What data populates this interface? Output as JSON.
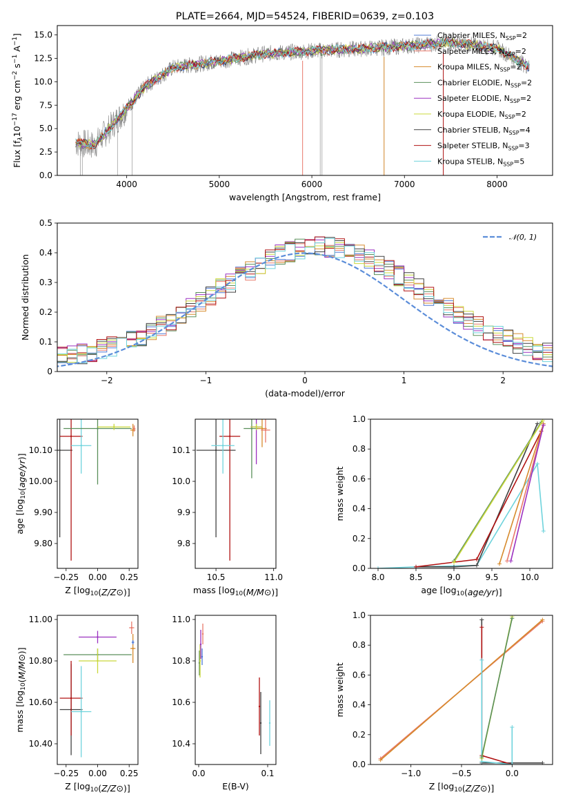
{
  "title": "PLATE=2664, MJD=54524, FIBERID=0639, z=0.103",
  "legend": [
    {
      "label": "Chabrier MILES, N",
      "sub": "SSP",
      "val": "=2",
      "color": "#4e79d6"
    },
    {
      "label": "Salpeter MILES, N",
      "sub": "SSP",
      "val": "=2",
      "color": "#e8796a"
    },
    {
      "label": "Kroupa MILES, N",
      "sub": "SSP",
      "val": "=2",
      "color": "#d68a2c"
    },
    {
      "label": "Chabrier ELODIE, N",
      "sub": "SSP",
      "val": "=2",
      "color": "#5a8f5a"
    },
    {
      "label": "Salpeter ELODIE, N",
      "sub": "SSP",
      "val": "=2",
      "color": "#9b30c0"
    },
    {
      "label": "Kroupa ELODIE, N",
      "sub": "SSP",
      "val": "=2",
      "color": "#c9d83a"
    },
    {
      "label": "Chabrier STELIB, N",
      "sub": "SSP",
      "val": "=4",
      "color": "#404040"
    },
    {
      "label": "Salpeter STELIB, N",
      "sub": "SSP",
      "val": "=3",
      "color": "#b01010"
    },
    {
      "label": "Kroupa STELIB, N",
      "sub": "SSP",
      "val": "=5",
      "color": "#6ed3dc"
    }
  ],
  "chart_data": [
    {
      "type": "line",
      "id": "spectrum",
      "xlabel": "wavelength [Angstrom, rest frame]",
      "ylabel_parts": [
        "Flux [f",
        "λ",
        "10",
        "−17",
        " erg cm",
        "−2",
        " s",
        "−1",
        " A",
        "−1",
        "]"
      ],
      "xlim": [
        3250,
        8600
      ],
      "ylim": [
        0,
        16
      ],
      "xticks": [
        4000,
        5000,
        6000,
        7000,
        8000
      ],
      "yticks": [
        0.0,
        2.5,
        5.0,
        7.5,
        10.0,
        12.5,
        15.0
      ],
      "data_envelope": {
        "x": [
          3450,
          3650,
          3900,
          4200,
          4500,
          5000,
          5500,
          6000,
          6500,
          7000,
          7500,
          8000,
          8350
        ],
        "y": [
          3.5,
          3.2,
          6.0,
          9.5,
          11.5,
          12.2,
          13.0,
          13.3,
          13.5,
          13.8,
          14.2,
          13.6,
          11.5
        ]
      }
    },
    {
      "type": "line",
      "id": "residuals",
      "xlabel": "(data-model)/error",
      "ylabel": "Normed distribution",
      "xlim": [
        -2.5,
        2.5
      ],
      "ylim": [
        0,
        0.5
      ],
      "xticks": [
        -2,
        -1,
        0,
        1,
        2
      ],
      "yticks": [
        0.0,
        0.1,
        0.2,
        0.3,
        0.4,
        0.5
      ],
      "gaussian_label": "𝒩(0, 1)",
      "gaussian_color": "#5b8dd9"
    },
    {
      "type": "scatter",
      "id": "age_vs_Z",
      "xlabel": "Z [log10(Z/Z⊙)]",
      "ylabel": "age  [log10(age/yr)]",
      "xlim": [
        -0.32,
        0.32
      ],
      "ylim": [
        9.72,
        10.2
      ],
      "xticks": [
        -0.25,
        0.0,
        0.25
      ],
      "yticks": [
        9.8,
        9.9,
        10.0,
        10.1
      ],
      "points": [
        {
          "x": -0.3,
          "y": 10.1,
          "xerr": 0.1,
          "yerr": 0.28,
          "color": "#404040"
        },
        {
          "x": -0.21,
          "y": 10.145,
          "xerr": 0.09,
          "yerr": 0.4,
          "color": "#b01010"
        },
        {
          "x": -0.13,
          "y": 10.115,
          "xerr": 0.08,
          "yerr": 0.09,
          "color": "#6ed3dc"
        },
        {
          "x": 0.0,
          "y": 10.17,
          "xerr": 0.27,
          "yerr": 0.18,
          "color": "#5a8f5a"
        },
        {
          "x": 0.13,
          "y": 10.175,
          "xerr": 0.13,
          "yerr": 0.01,
          "color": "#c9d83a"
        },
        {
          "x": 0.28,
          "y": 10.165,
          "xerr": 0.02,
          "yerr": 0.02,
          "color": "#d68a2c"
        },
        {
          "x": 0.29,
          "y": 10.17,
          "xerr": 0.01,
          "yerr": 0.01,
          "color": "#e8796a"
        }
      ]
    },
    {
      "type": "scatter",
      "id": "age_vs_mass",
      "xlabel": "mass [log10(M/M⊙)]",
      "ylabel": "",
      "xlim": [
        10.32,
        11.02
      ],
      "ylim": [
        9.72,
        10.2
      ],
      "xticks": [
        10.5,
        11.0
      ],
      "yticks": [
        9.8,
        9.9,
        10.0,
        10.1
      ],
      "points": [
        {
          "x": 10.5,
          "y": 10.1,
          "xerr": 0.17,
          "yerr": 0.28,
          "color": "#404040"
        },
        {
          "x": 10.62,
          "y": 10.145,
          "xerr": 0.09,
          "yerr": 0.4,
          "color": "#b01010"
        },
        {
          "x": 10.56,
          "y": 10.115,
          "xerr": 0.1,
          "yerr": 0.09,
          "color": "#6ed3dc"
        },
        {
          "x": 10.81,
          "y": 10.17,
          "xerr": 0.07,
          "yerr": 0.16,
          "color": "#5a8f5a"
        },
        {
          "x": 10.85,
          "y": 10.175,
          "xerr": 0.05,
          "yerr": 0.12,
          "color": "#9b30c0"
        },
        {
          "x": 10.9,
          "y": 10.17,
          "xerr": 0.04,
          "yerr": 0.06,
          "color": "#d68a2c"
        },
        {
          "x": 10.93,
          "y": 10.165,
          "xerr": 0.04,
          "yerr": 0.04,
          "color": "#e8796a"
        },
        {
          "x": 10.85,
          "y": 10.175,
          "xerr": 0.05,
          "yerr": 0.01,
          "color": "#c9d83a"
        }
      ]
    },
    {
      "type": "line",
      "id": "massweight_vs_age",
      "xlabel": "age  [log10(age/yr)]",
      "ylabel": "mass weight",
      "xlim": [
        7.9,
        10.3
      ],
      "ylim": [
        0,
        1
      ],
      "xticks": [
        8.0,
        8.5,
        9.0,
        9.5,
        10.0
      ],
      "yticks": [
        0.0,
        0.2,
        0.4,
        0.6,
        0.8,
        1.0
      ],
      "series": [
        {
          "color": "#6ed3dc",
          "x": [
            8.0,
            8.5,
            9.3,
            10.1,
            10.18
          ],
          "y": [
            0.0,
            0.01,
            0.02,
            0.7,
            0.25
          ]
        },
        {
          "color": "#404040",
          "x": [
            8.5,
            9.0,
            9.3,
            10.1
          ],
          "y": [
            0.01,
            0.01,
            0.02,
            0.97
          ]
        },
        {
          "color": "#b01010",
          "x": [
            8.5,
            9.3,
            10.15
          ],
          "y": [
            0.01,
            0.06,
            0.92
          ]
        },
        {
          "color": "#5a8f5a",
          "x": [
            9.0,
            10.15
          ],
          "y": [
            0.05,
            0.98
          ]
        },
        {
          "color": "#c9d83a",
          "x": [
            9.0,
            10.17
          ],
          "y": [
            0.04,
            0.99
          ]
        },
        {
          "color": "#d68a2c",
          "x": [
            9.6,
            10.18
          ],
          "y": [
            0.03,
            0.97
          ]
        },
        {
          "color": "#e8796a",
          "x": [
            9.7,
            10.18
          ],
          "y": [
            0.05,
            0.96
          ]
        },
        {
          "color": "#9b30c0",
          "x": [
            9.75,
            10.18
          ],
          "y": [
            0.05,
            0.96
          ]
        }
      ]
    },
    {
      "type": "scatter",
      "id": "mass_vs_Z",
      "xlabel": "Z [log10(Z/Z⊙)]",
      "ylabel": "mass [log10(M/M⊙)]",
      "xlim": [
        -0.32,
        0.32
      ],
      "ylim": [
        10.3,
        11.02
      ],
      "xticks": [
        -0.25,
        0.0,
        0.25
      ],
      "yticks": [
        10.4,
        10.6,
        10.8,
        11.0
      ],
      "points": [
        {
          "x": -0.21,
          "y": 10.565,
          "xerr": 0.09,
          "yerr": 0.22,
          "color": "#404040"
        },
        {
          "x": -0.21,
          "y": 10.62,
          "xerr": 0.09,
          "yerr": 0.18,
          "color": "#b01010"
        },
        {
          "x": -0.13,
          "y": 10.555,
          "xerr": 0.08,
          "yerr": 0.22,
          "color": "#6ed3dc"
        },
        {
          "x": 0.0,
          "y": 10.83,
          "xerr": 0.27,
          "yerr": 0.03,
          "color": "#5a8f5a"
        },
        {
          "x": 0.0,
          "y": 10.8,
          "xerr": 0.15,
          "yerr": 0.06,
          "color": "#c9d83a"
        },
        {
          "x": 0.0,
          "y": 10.915,
          "xerr": 0.15,
          "yerr": 0.03,
          "color": "#9b30c0"
        },
        {
          "x": 0.28,
          "y": 10.86,
          "xerr": 0.02,
          "yerr": 0.07,
          "color": "#d68a2c"
        },
        {
          "x": 0.27,
          "y": 10.96,
          "xerr": 0.02,
          "yerr": 0.03,
          "color": "#e8796a"
        },
        {
          "x": 0.28,
          "y": 10.89,
          "xerr": 0.01,
          "yerr": 0.01,
          "color": "#4e79d6"
        }
      ]
    },
    {
      "type": "scatter",
      "id": "mass_vs_EBV",
      "xlabel": "E(B-V)",
      "ylabel": "",
      "xlim": [
        -0.005,
        0.112
      ],
      "ylim": [
        10.3,
        11.02
      ],
      "xticks": [
        0.0,
        0.1
      ],
      "yticks": [
        10.4,
        10.6,
        10.8,
        11.0
      ],
      "points": [
        {
          "x": 0.088,
          "y": 10.58,
          "xerr": 0.0,
          "yerr": 0.14,
          "color": "#b01010"
        },
        {
          "x": 0.09,
          "y": 10.5,
          "xerr": 0.0,
          "yerr": 0.15,
          "color": "#404040"
        },
        {
          "x": 0.103,
          "y": 10.5,
          "xerr": 0.0,
          "yerr": 0.11,
          "color": "#6ed3dc"
        },
        {
          "x": 0.001,
          "y": 10.79,
          "xerr": 0.0,
          "yerr": 0.06,
          "color": "#5a8f5a"
        },
        {
          "x": 0.002,
          "y": 10.8,
          "xerr": 0.0,
          "yerr": 0.08,
          "color": "#c9d83a"
        },
        {
          "x": 0.003,
          "y": 10.88,
          "xerr": 0.0,
          "yerr": 0.07,
          "color": "#9b30c0"
        },
        {
          "x": 0.006,
          "y": 10.93,
          "xerr": 0.0,
          "yerr": 0.05,
          "color": "#e8796a"
        },
        {
          "x": 0.005,
          "y": 10.82,
          "xerr": 0.0,
          "yerr": 0.04,
          "color": "#4e79d6"
        }
      ]
    },
    {
      "type": "line",
      "id": "massweight_vs_Z",
      "xlabel": "Z [log10(Z/Z⊙)]",
      "ylabel": "mass weight",
      "xlim": [
        -1.4,
        0.4
      ],
      "ylim": [
        0,
        1
      ],
      "xticks": [
        -1.0,
        -0.5,
        0.0
      ],
      "yticks": [
        0.0,
        0.2,
        0.4,
        0.6,
        0.8,
        1.0
      ],
      "series": [
        {
          "color": "#e8796a",
          "x": [
            -1.3,
            0.3
          ],
          "y": [
            0.04,
            0.96
          ]
        },
        {
          "color": "#d68a2c",
          "x": [
            -1.3,
            0.3
          ],
          "y": [
            0.03,
            0.97
          ]
        },
        {
          "color": "#404040",
          "x": [
            -0.3,
            -0.3,
            0.3
          ],
          "y": [
            0.97,
            0.01,
            0.01
          ]
        },
        {
          "color": "#b01010",
          "x": [
            -0.3,
            -0.3,
            0.0
          ],
          "y": [
            0.92,
            0.06,
            0.0
          ]
        },
        {
          "color": "#6ed3dc",
          "x": [
            -0.3,
            -0.3,
            0.0,
            0.0
          ],
          "y": [
            0.7,
            0.02,
            0.0,
            0.25
          ]
        },
        {
          "color": "#c9d83a",
          "x": [
            -0.3,
            0.0
          ],
          "y": [
            0.04,
            0.99
          ]
        },
        {
          "color": "#5a8f5a",
          "x": [
            -0.3,
            0.0
          ],
          "y": [
            0.05,
            0.98
          ]
        }
      ]
    }
  ]
}
